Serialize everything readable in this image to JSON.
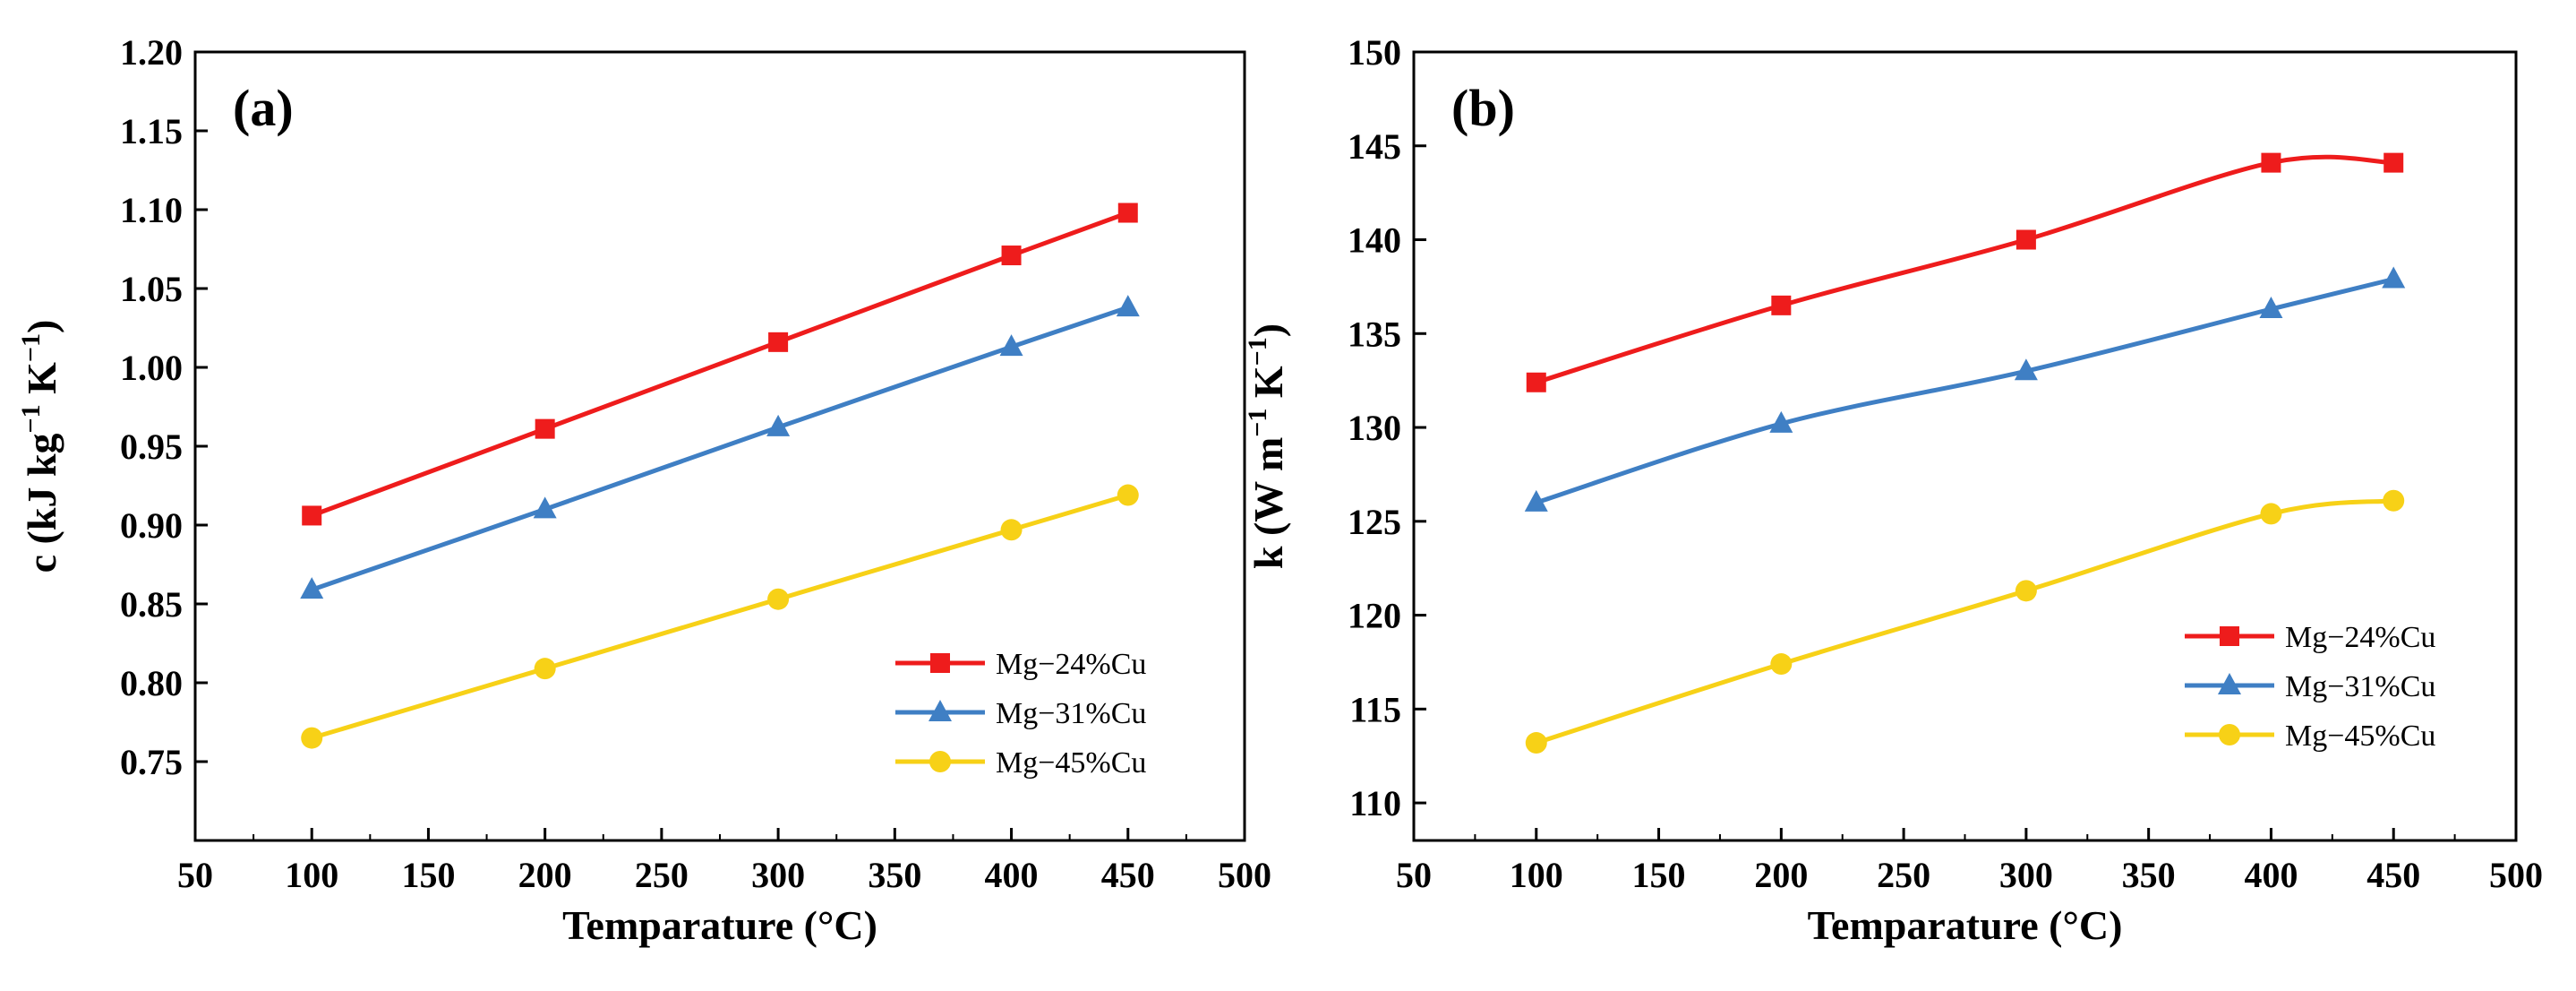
{
  "chart_data": [
    {
      "type": "line",
      "panel": "(a)",
      "xlabel": "Temparature (°C)",
      "ylabel": {
        "main": "c (kJ kg",
        "sup1": "−1",
        "mid": " K",
        "sup2": "−1",
        "end": ")"
      },
      "xlim": [
        50,
        500
      ],
      "ylim": [
        0.7,
        1.2
      ],
      "xticks": [
        50,
        100,
        150,
        200,
        250,
        300,
        350,
        400,
        450,
        500
      ],
      "yticks": [
        0.75,
        0.8,
        0.85,
        0.9,
        0.95,
        1.0,
        1.05,
        1.1,
        1.15,
        1.2
      ],
      "ytick_labels": [
        "0.75",
        "0.80",
        "0.85",
        "0.90",
        "0.95",
        "1.00",
        "1.05",
        "1.10",
        "1.15",
        "1.20"
      ],
      "x": [
        100,
        200,
        300,
        400,
        450
      ],
      "legend_position": "bottom-right",
      "series": [
        {
          "name": "Mg−24%Cu",
          "color": "#ee1c1c",
          "marker": "square",
          "values": [
            0.906,
            0.961,
            1.016,
            1.071,
            1.098
          ]
        },
        {
          "name": "Mg−31%Cu",
          "color": "#3f7fc4",
          "marker": "triangle",
          "values": [
            0.859,
            0.91,
            0.962,
            1.013,
            1.038
          ]
        },
        {
          "name": "Mg−45%Cu",
          "color": "#f7d117",
          "marker": "circle",
          "values": [
            0.765,
            0.809,
            0.853,
            0.897,
            0.919
          ]
        }
      ]
    },
    {
      "type": "line",
      "panel": "(b)",
      "xlabel": "Temparature (°C)",
      "ylabel": {
        "main": "k (W m",
        "sup1": "−1",
        "mid": " K",
        "sup2": "−1",
        "end": ")"
      },
      "xlim": [
        50,
        500
      ],
      "ylim": [
        108,
        150
      ],
      "xticks": [
        50,
        100,
        150,
        200,
        250,
        300,
        350,
        400,
        450,
        500
      ],
      "yticks": [
        110,
        115,
        120,
        125,
        130,
        135,
        140,
        145,
        150
      ],
      "ytick_labels": [
        "110",
        "115",
        "120",
        "125",
        "130",
        "135",
        "140",
        "145",
        "150"
      ],
      "x": [
        100,
        200,
        300,
        400,
        450
      ],
      "legend_position": "right",
      "series": [
        {
          "name": "Mg−24%Cu",
          "color": "#ee1c1c",
          "marker": "square",
          "values": [
            132.4,
            136.5,
            140.0,
            144.1,
            144.1
          ]
        },
        {
          "name": "Mg−31%Cu",
          "color": "#3f7fc4",
          "marker": "triangle",
          "values": [
            126.0,
            130.2,
            133.0,
            136.3,
            137.9
          ]
        },
        {
          "name": "Mg−45%Cu",
          "color": "#f7d117",
          "marker": "circle",
          "values": [
            113.2,
            117.4,
            121.3,
            125.4,
            126.1
          ]
        }
      ]
    }
  ]
}
